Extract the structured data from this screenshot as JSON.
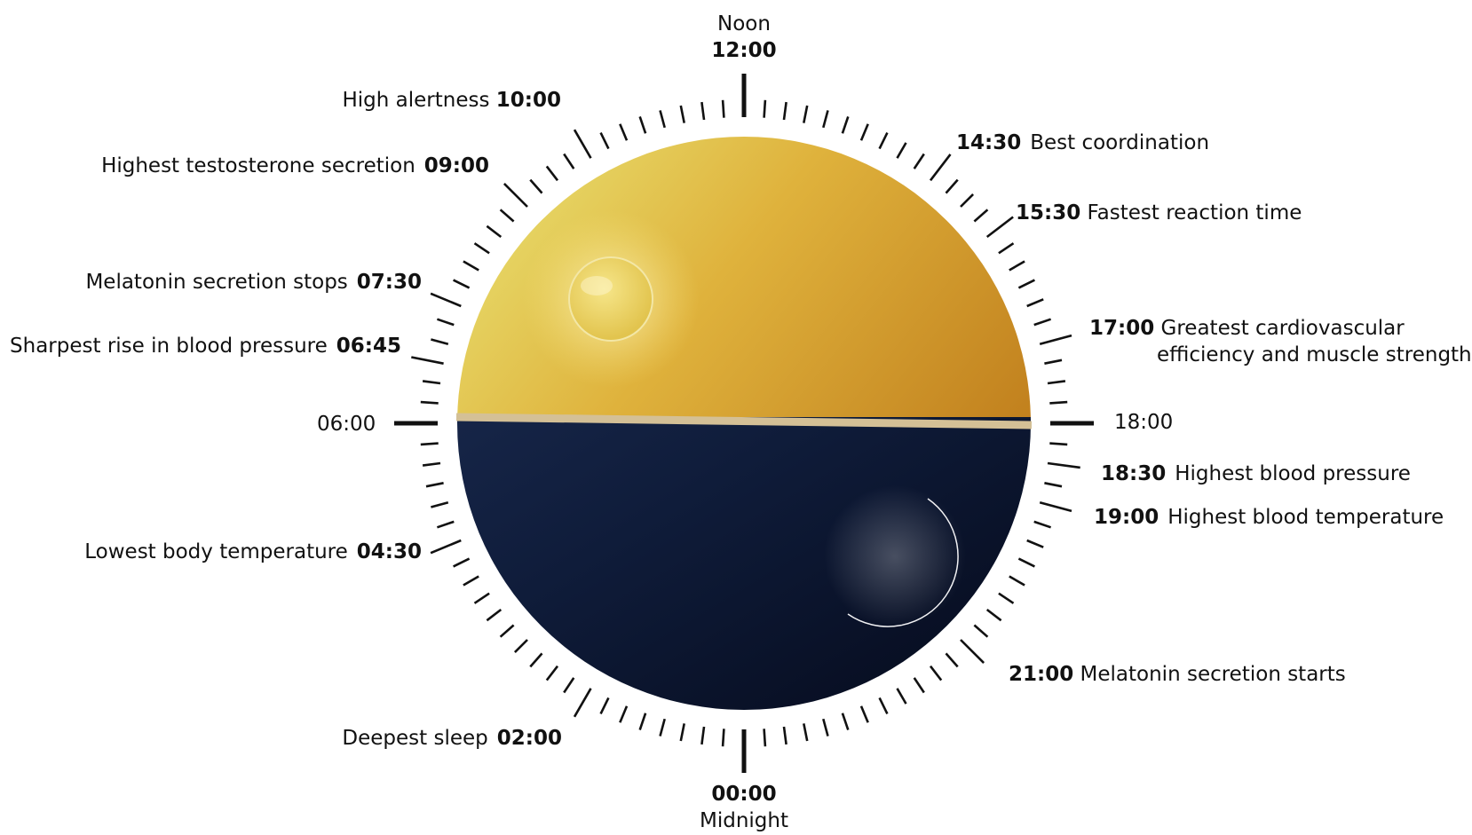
{
  "noon": {
    "word": "Noon",
    "time": "12:00"
  },
  "midnight": {
    "word": "Midnight",
    "time": "00:00"
  },
  "side_times": {
    "left": "06:00",
    "right": "18:00"
  },
  "events": [
    {
      "time": "10:00",
      "label": "High alertness"
    },
    {
      "time": "09:00",
      "label": "Highest testosterone secretion"
    },
    {
      "time": "07:30",
      "label": "Melatonin secretion stops"
    },
    {
      "time": "06:45",
      "label": "Sharpest rise in blood pressure"
    },
    {
      "time": "04:30",
      "label": "Lowest body temperature"
    },
    {
      "time": "02:00",
      "label": "Deepest sleep"
    },
    {
      "time": "14:30",
      "label": "Best coordination"
    },
    {
      "time": "15:30",
      "label": "Fastest reaction time"
    },
    {
      "time": "17:00",
      "label": "Greatest cardiovascular",
      "label2": "efficiency and muscle strength"
    },
    {
      "time": "18:30",
      "label": "Highest blood pressure"
    },
    {
      "time": "19:00",
      "label": "Highest blood temperature"
    },
    {
      "time": "21:00",
      "label": "Melatonin secretion starts"
    }
  ],
  "colors": {
    "day_light": "#e6dc5a",
    "day_dark": "#b0680e",
    "night_light": "#1c2d52",
    "night_dark": "#080f22",
    "horizon": "#d4c096",
    "ticks": "#111111"
  },
  "icons": [
    "sun-icon",
    "moon-icon"
  ]
}
